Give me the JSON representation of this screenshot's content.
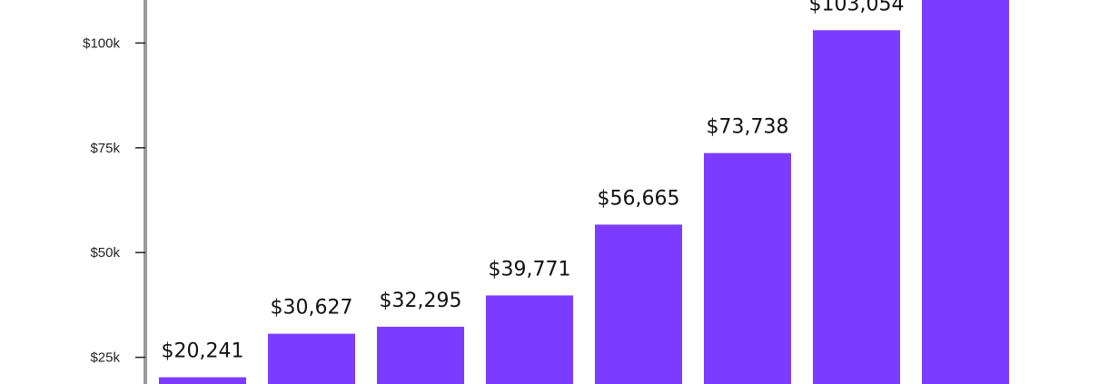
{
  "chart_data": {
    "type": "bar",
    "values": [
      20241,
      30627,
      32295,
      39771,
      56665,
      73738,
      103054,
      null
    ],
    "data_labels": [
      "$20,241",
      "$30,627",
      "$32,295",
      "$39,771",
      "$56,665",
      "$73,738",
      "$103,054",
      ""
    ],
    "y_ticks": [
      {
        "value": 25000,
        "label": "$25k"
      },
      {
        "value": 50000,
        "label": "$50k"
      },
      {
        "value": 75000,
        "label": "$75k"
      },
      {
        "value": 100000,
        "label": "$100k"
      }
    ],
    "ylim": [
      21000,
      110000
    ],
    "bar_color": "#7b3cff",
    "axis_color": "#999999",
    "tick_color": "#222222",
    "grid": false
  }
}
